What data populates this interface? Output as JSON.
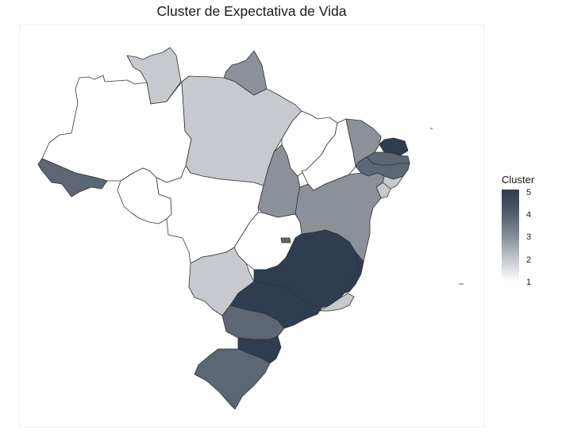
{
  "title": "Cluster de Expectativa de Vida",
  "legend": {
    "title": "Cluster",
    "ticks": [
      "5",
      "4",
      "3",
      "2",
      "1"
    ],
    "gradient": [
      "#2e3d50",
      "#4f5b6a",
      "#858b95",
      "#c3c6ca",
      "#ffffff"
    ]
  },
  "palette": {
    "1": "#ffffff",
    "2": "#c6c9cd",
    "3": "#8c9199",
    "4": "#5c6674",
    "5": "#2e3d50"
  },
  "states": [
    {
      "id": "AC",
      "cluster": 4
    },
    {
      "id": "AM",
      "cluster": 1
    },
    {
      "id": "RR",
      "cluster": 2
    },
    {
      "id": "PA",
      "cluster": 2
    },
    {
      "id": "AP",
      "cluster": 3
    },
    {
      "id": "RO",
      "cluster": 1
    },
    {
      "id": "MT",
      "cluster": 1
    },
    {
      "id": "TO",
      "cluster": 3
    },
    {
      "id": "MA",
      "cluster": 1
    },
    {
      "id": "PI",
      "cluster": 1
    },
    {
      "id": "CE",
      "cluster": 3
    },
    {
      "id": "RN",
      "cluster": 5
    },
    {
      "id": "PB",
      "cluster": 4
    },
    {
      "id": "PE",
      "cluster": 4
    },
    {
      "id": "AL",
      "cluster": 2
    },
    {
      "id": "SE",
      "cluster": 2
    },
    {
      "id": "BA",
      "cluster": 3
    },
    {
      "id": "GO",
      "cluster": 1
    },
    {
      "id": "DF",
      "cluster": 4
    },
    {
      "id": "MS",
      "cluster": 2
    },
    {
      "id": "MG",
      "cluster": 5
    },
    {
      "id": "ES",
      "cluster": 5
    },
    {
      "id": "RJ",
      "cluster": 2
    },
    {
      "id": "SP",
      "cluster": 5
    },
    {
      "id": "PR",
      "cluster": 4
    },
    {
      "id": "SC",
      "cluster": 5
    },
    {
      "id": "RS",
      "cluster": 4
    }
  ]
}
